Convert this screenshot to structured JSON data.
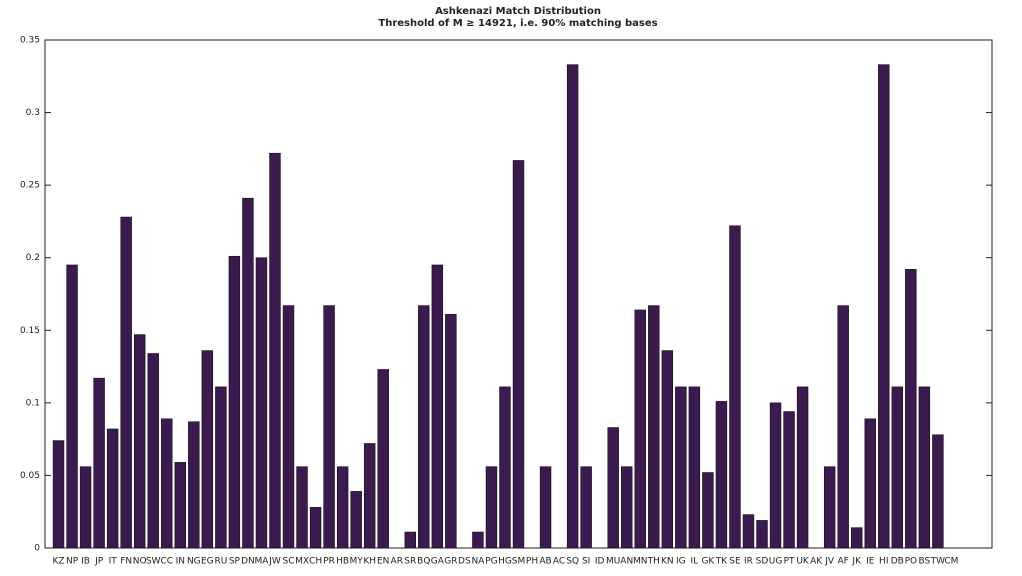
{
  "chart_data": {
    "type": "bar",
    "title": "Ashkenazi Match Distribution",
    "subtitle": "Threshold of M ≥ 14921, i.e. 90% matching bases",
    "categories": [
      "KZ",
      "NP",
      "IB",
      "JP",
      "IT",
      "FN",
      "NO",
      "SW",
      "CC",
      "IN",
      "NG",
      "EG",
      "RU",
      "SP",
      "DN",
      "MA",
      "JW",
      "SC",
      "MX",
      "CH",
      "PR",
      "HB",
      "MY",
      "KH",
      "EN",
      "AR",
      "SR",
      "BQ",
      "GA",
      "GR",
      "DS",
      "NA",
      "PG",
      "HG",
      "SM",
      "PH",
      "AB",
      "AC",
      "SQ",
      "SI",
      "ID",
      "MU",
      "AN",
      "MN",
      "TH",
      "KN",
      "IG",
      "IL",
      "GK",
      "TK",
      "SE",
      "IR",
      "SD",
      "UG",
      "PT",
      "UK",
      "AK",
      "JV",
      "AF",
      "JK",
      "IE",
      "HI",
      "DB",
      "PO",
      "BS",
      "TW",
      "CM"
    ],
    "values": [
      0.074,
      0.195,
      0.056,
      0.117,
      0.082,
      0.228,
      0.147,
      0.134,
      0.089,
      0.059,
      0.087,
      0.136,
      0.111,
      0.201,
      0.241,
      0.2,
      0.272,
      0.167,
      0.056,
      0.028,
      0.167,
      0.056,
      0.039,
      0.072,
      0.123,
      0,
      0.011,
      0.167,
      0.195,
      0.161,
      0,
      0.011,
      0.056,
      0.111,
      0.267,
      0,
      0.056,
      0,
      0.333,
      0.056,
      0,
      0.083,
      0.056,
      0.164,
      0.167,
      0.136,
      0.111,
      0.111,
      0.052,
      0.101,
      0.222,
      0.023,
      0.019,
      0.1,
      0.094,
      0.111,
      0,
      0.056,
      0.167,
      0.014,
      0.089,
      0.333,
      0.111,
      0.192,
      0.111,
      0.078,
      0
    ],
    "color": "#3b1a50",
    "ylim": [
      0,
      0.35
    ],
    "yticks": [
      0,
      0.05,
      0.1,
      0.15,
      0.2,
      0.25,
      0.3,
      0.35
    ]
  }
}
